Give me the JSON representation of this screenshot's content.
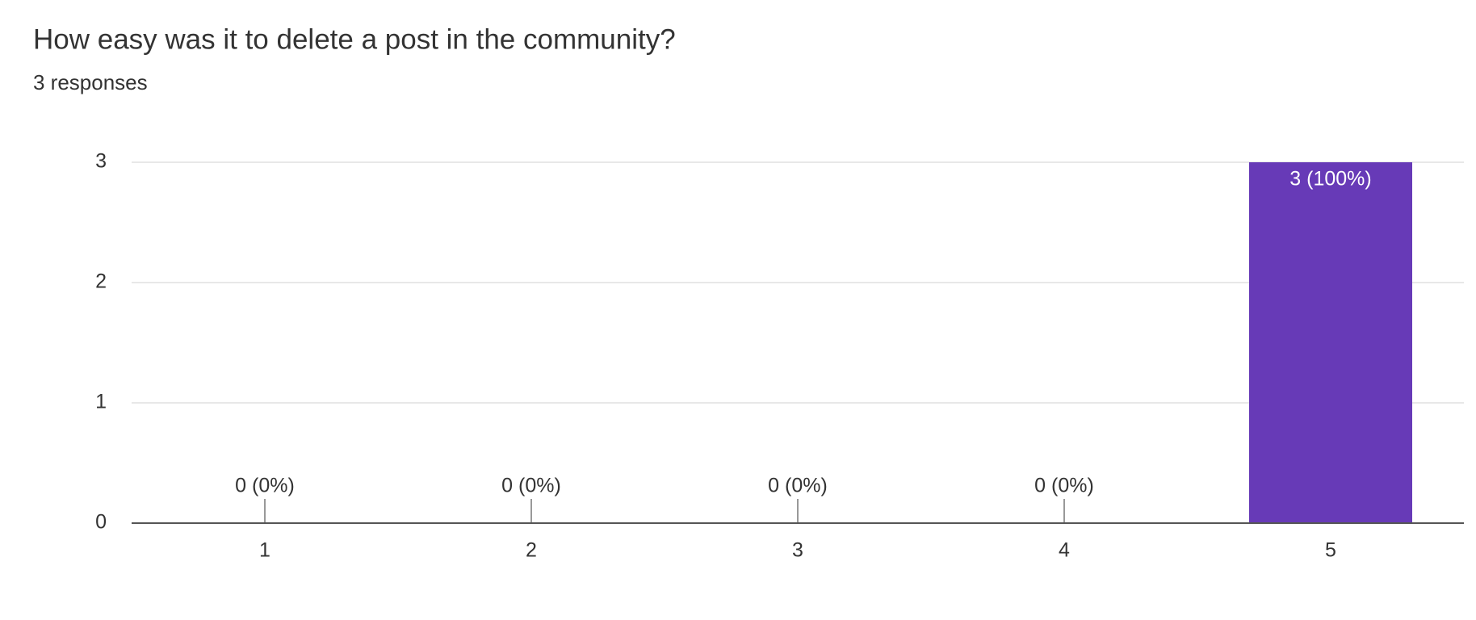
{
  "chart_data": {
    "type": "bar",
    "title": "How easy was it to delete a post in the community?",
    "subtitle": "3 responses",
    "categories": [
      "1",
      "2",
      "3",
      "4",
      "5"
    ],
    "values": [
      0,
      0,
      0,
      0,
      3
    ],
    "value_labels": [
      "0 (0%)",
      "0 (0%)",
      "0 (0%)",
      "0 (0%)",
      "3 (100%)"
    ],
    "color": "#673ab7",
    "ylim": [
      0,
      3
    ],
    "yticks": [
      0,
      1,
      2,
      3
    ],
    "grid": true
  }
}
